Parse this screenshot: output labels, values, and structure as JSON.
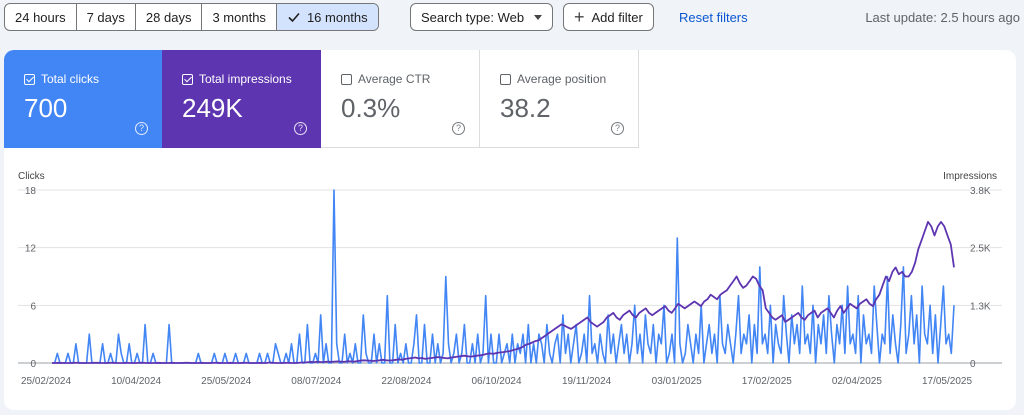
{
  "date_range": {
    "options": [
      {
        "label": "24 hours",
        "selected": false
      },
      {
        "label": "7 days",
        "selected": false
      },
      {
        "label": "28 days",
        "selected": false
      },
      {
        "label": "3 months",
        "selected": false
      },
      {
        "label": "16 months",
        "selected": true
      }
    ]
  },
  "filters": {
    "search_type_label": "Search type: Web",
    "add_filter_label": "Add filter",
    "reset_label": "Reset filters"
  },
  "last_update": "Last update: 2.5 hours ago",
  "metrics": {
    "clicks": {
      "label": "Total clicks",
      "value": "700",
      "checked": true,
      "color": "#4285f4"
    },
    "impressions": {
      "label": "Total impressions",
      "value": "249K",
      "checked": true,
      "color": "#5e35b1"
    },
    "ctr": {
      "label": "Average CTR",
      "value": "0.3%",
      "checked": false
    },
    "position": {
      "label": "Average position",
      "value": "38.2",
      "checked": false
    }
  },
  "chart_data": {
    "type": "line",
    "left_axis": {
      "label": "Clicks",
      "ticks": [
        "18",
        "12",
        "6",
        "0"
      ],
      "min": 0,
      "max": 18
    },
    "right_axis": {
      "label": "Impressions",
      "ticks": [
        "3.8K",
        "2.5K",
        "1.3K",
        "0"
      ],
      "min": 0,
      "max": 3800
    },
    "x_tick_labels": [
      "25/02/2024",
      "10/04/2024",
      "25/05/2024",
      "08/07/2024",
      "22/08/2024",
      "06/10/2024",
      "19/11/2024",
      "03/01/2025",
      "17/02/2025",
      "02/04/2025",
      "17/05/2025"
    ],
    "series": [
      {
        "name": "Clicks",
        "axis": "left",
        "color": "#4285f4",
        "values": [
          0,
          0,
          1,
          0,
          0,
          0,
          1,
          0,
          0,
          2,
          0,
          0,
          0,
          0,
          3,
          0,
          0,
          0,
          0,
          2,
          0,
          0,
          1,
          0,
          0,
          3,
          1,
          0,
          0,
          2,
          0,
          0,
          1,
          0,
          0,
          4,
          0,
          0,
          1,
          0,
          0,
          0,
          0,
          0,
          4,
          0,
          0,
          0,
          0,
          0,
          0,
          0,
          0,
          0,
          0,
          1,
          0,
          0,
          0,
          0,
          0,
          1,
          0,
          0,
          0,
          1,
          0,
          0,
          0,
          1,
          0,
          0,
          0,
          1,
          0,
          0,
          0,
          0,
          1,
          0,
          0,
          1,
          0,
          0,
          2,
          1,
          0,
          0,
          1,
          0,
          2,
          0,
          0,
          3,
          0,
          0,
          4,
          0,
          0,
          1,
          0,
          5,
          0,
          2,
          0,
          0,
          18,
          2,
          0,
          0,
          3,
          0,
          1,
          0,
          2,
          0,
          0,
          5,
          1,
          0,
          0,
          3,
          0,
          2,
          0,
          0,
          7,
          0,
          0,
          4,
          0,
          1,
          0,
          2,
          0,
          0,
          2,
          5,
          0,
          0,
          4,
          0,
          0,
          3,
          0,
          2,
          0,
          1,
          9,
          2,
          0,
          1,
          3,
          0,
          1,
          4,
          0,
          0,
          2,
          0,
          3,
          0,
          1,
          7,
          0,
          3,
          0,
          0,
          3,
          0,
          1,
          2,
          0,
          3,
          0,
          2,
          1,
          3,
          0,
          4,
          0,
          2,
          0,
          3,
          2,
          0,
          4,
          1,
          0,
          2,
          3,
          0,
          5,
          1,
          3,
          0,
          2,
          4,
          0,
          1,
          3,
          0,
          7,
          1,
          2,
          0,
          3,
          1,
          0,
          5,
          1,
          3,
          0,
          2,
          4,
          1,
          3,
          0,
          2,
          6,
          1,
          3,
          0,
          5,
          2,
          1,
          4,
          0,
          3,
          2,
          6,
          0,
          1,
          3,
          0,
          13,
          2,
          0,
          1,
          4,
          2,
          0,
          3,
          1,
          6,
          0,
          2,
          4,
          1,
          3,
          0,
          7,
          2,
          1,
          4,
          2,
          0,
          3,
          7,
          1,
          3,
          2,
          5,
          0,
          4,
          1,
          10,
          2,
          3,
          1,
          6,
          0,
          4,
          2,
          1,
          7,
          3,
          0,
          5,
          2,
          4,
          1,
          8,
          2,
          3,
          1,
          6,
          0,
          4,
          2,
          5,
          1,
          7,
          3,
          0,
          4,
          2,
          6,
          1,
          8,
          2,
          3,
          1,
          7,
          0,
          5,
          2,
          3,
          1,
          8,
          4,
          0,
          3,
          2,
          9,
          1,
          5,
          2,
          0,
          4,
          10,
          1,
          3,
          7,
          2,
          5,
          0,
          8,
          3,
          2,
          6,
          1,
          5,
          0,
          4,
          8,
          2,
          3,
          1,
          6
        ],
        "interpretation": "daily clicks"
      },
      {
        "name": "Impressions",
        "axis": "right",
        "color": "#5e35b1",
        "values": [
          0,
          0,
          5,
          0,
          0,
          0,
          0,
          5,
          5,
          0,
          0,
          0,
          0,
          5,
          5,
          0,
          0,
          0,
          5,
          5,
          0,
          0,
          0,
          5,
          0,
          0,
          0,
          5,
          5,
          0,
          0,
          0,
          0,
          5,
          0,
          0,
          0,
          5,
          0,
          0,
          0,
          5,
          5,
          0,
          0,
          0,
          5,
          0,
          0,
          0,
          5,
          5,
          0,
          0,
          0,
          5,
          0,
          0,
          0,
          5,
          5,
          0,
          0,
          0,
          5,
          0,
          0,
          10,
          5,
          0,
          0,
          0,
          5,
          5,
          0,
          0,
          5,
          10,
          10,
          20,
          25,
          20,
          30,
          20,
          25,
          30,
          25,
          30,
          35,
          30,
          25,
          40,
          35,
          30,
          40,
          50,
          60,
          55,
          50,
          45,
          50,
          60,
          70,
          60,
          55,
          60,
          70,
          80,
          70,
          90,
          100,
          110,
          120,
          100,
          110,
          90,
          100,
          110,
          120,
          130,
          120,
          110,
          100,
          120,
          130,
          140,
          150,
          160,
          150,
          140,
          150,
          160,
          170,
          180,
          200,
          210,
          200,
          220,
          230,
          240,
          250,
          260,
          280,
          300,
          320,
          350,
          400,
          420,
          450,
          480,
          500,
          550,
          600,
          650,
          700,
          750,
          800,
          850,
          820,
          780,
          750,
          800,
          850,
          900,
          950,
          1000,
          900,
          850,
          800,
          850,
          900,
          1000,
          1050,
          1100,
          1000,
          950,
          1050,
          1100,
          1150,
          1050,
          1000,
          1100,
          1150,
          1200,
          1100,
          1050,
          1100,
          1150,
          1200,
          1250,
          1150,
          1100,
          1200,
          1300,
          1250,
          1200,
          1250,
          1300,
          1350,
          1300,
          1250,
          1350,
          1400,
          1500,
          1450,
          1400,
          1500,
          1550,
          1600,
          1700,
          1800,
          1900,
          1750,
          1650,
          1700,
          1800,
          1900,
          1850,
          1700,
          1600,
          1200,
          1100,
          1000,
          950,
          1000,
          1050,
          900,
          950,
          1000,
          1050,
          1100,
          1000,
          950,
          1050,
          1100,
          1150,
          1000,
          1100,
          1150,
          1200,
          1100,
          1000,
          1150,
          1250,
          1100,
          1200,
          1300,
          1250,
          1200,
          1300,
          1350,
          1400,
          1300,
          1250,
          1400,
          1500,
          1700,
          1900,
          1800,
          2000,
          2100,
          1950,
          2000,
          1900,
          1900,
          2000,
          2200,
          2500,
          2700,
          2900,
          3100,
          3000,
          2800,
          3000,
          3100,
          3000,
          2800,
          2600,
          2100
        ],
        "interpretation": "daily impressions"
      }
    ]
  }
}
